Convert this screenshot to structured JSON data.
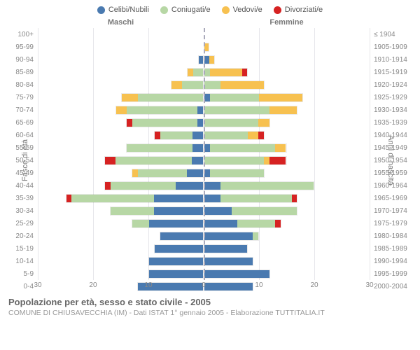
{
  "legend": [
    {
      "label": "Celibi/Nubili",
      "color": "#4a7ab0"
    },
    {
      "label": "Coniugati/e",
      "color": "#b7d7a5"
    },
    {
      "label": "Vedovi/e",
      "color": "#f7c150"
    },
    {
      "label": "Divorziati/e",
      "color": "#d62222"
    }
  ],
  "headers": {
    "males": "Maschi",
    "females": "Femmine"
  },
  "y_title_left": "Fasce di età",
  "y_title_right": "Anni di nascita",
  "x_max": 30,
  "x_ticks": [
    30,
    20,
    10,
    0,
    10,
    20,
    30
  ],
  "colors": {
    "single": "#4a7ab0",
    "married": "#b7d7a5",
    "widowed": "#f7c150",
    "divorced": "#d62222",
    "grid": "#e6e6ea",
    "centerline": "#aab"
  },
  "rows": [
    {
      "age": "100+",
      "year": "≤ 1904",
      "m": {
        "s": 0,
        "m": 0,
        "w": 0,
        "d": 0
      },
      "f": {
        "s": 0,
        "m": 0,
        "w": 0,
        "d": 0
      }
    },
    {
      "age": "95-99",
      "year": "1905-1909",
      "m": {
        "s": 0,
        "m": 0,
        "w": 0,
        "d": 0
      },
      "f": {
        "s": 0,
        "m": 0,
        "w": 1,
        "d": 0
      }
    },
    {
      "age": "90-94",
      "year": "1910-1914",
      "m": {
        "s": 1,
        "m": 0,
        "w": 0,
        "d": 0
      },
      "f": {
        "s": 1,
        "m": 0,
        "w": 1,
        "d": 0
      }
    },
    {
      "age": "85-89",
      "year": "1915-1919",
      "m": {
        "s": 0,
        "m": 2,
        "w": 1,
        "d": 0
      },
      "f": {
        "s": 0,
        "m": 1,
        "w": 6,
        "d": 1
      }
    },
    {
      "age": "80-84",
      "year": "1920-1924",
      "m": {
        "s": 0,
        "m": 4,
        "w": 2,
        "d": 0
      },
      "f": {
        "s": 0,
        "m": 3,
        "w": 8,
        "d": 0
      }
    },
    {
      "age": "75-79",
      "year": "1925-1929",
      "m": {
        "s": 0,
        "m": 12,
        "w": 3,
        "d": 0
      },
      "f": {
        "s": 1,
        "m": 9,
        "w": 8,
        "d": 0
      }
    },
    {
      "age": "70-74",
      "year": "1930-1934",
      "m": {
        "s": 1,
        "m": 13,
        "w": 2,
        "d": 0
      },
      "f": {
        "s": 0,
        "m": 12,
        "w": 5,
        "d": 0
      }
    },
    {
      "age": "65-69",
      "year": "1935-1939",
      "m": {
        "s": 1,
        "m": 12,
        "w": 0,
        "d": 1
      },
      "f": {
        "s": 0,
        "m": 10,
        "w": 2,
        "d": 0
      }
    },
    {
      "age": "60-64",
      "year": "1940-1944",
      "m": {
        "s": 2,
        "m": 6,
        "w": 0,
        "d": 1
      },
      "f": {
        "s": 0,
        "m": 8,
        "w": 2,
        "d": 1
      }
    },
    {
      "age": "55-59",
      "year": "1945-1949",
      "m": {
        "s": 2,
        "m": 12,
        "w": 0,
        "d": 0
      },
      "f": {
        "s": 1,
        "m": 12,
        "w": 2,
        "d": 0
      }
    },
    {
      "age": "50-54",
      "year": "1950-1954",
      "m": {
        "s": 2,
        "m": 14,
        "w": 0,
        "d": 2
      },
      "f": {
        "s": 0,
        "m": 11,
        "w": 1,
        "d": 3
      }
    },
    {
      "age": "45-49",
      "year": "1955-1959",
      "m": {
        "s": 3,
        "m": 9,
        "w": 1,
        "d": 0
      },
      "f": {
        "s": 1,
        "m": 10,
        "w": 0,
        "d": 0
      }
    },
    {
      "age": "40-44",
      "year": "1960-1964",
      "m": {
        "s": 5,
        "m": 12,
        "w": 0,
        "d": 1
      },
      "f": {
        "s": 3,
        "m": 17,
        "w": 0,
        "d": 0
      }
    },
    {
      "age": "35-39",
      "year": "1965-1969",
      "m": {
        "s": 9,
        "m": 15,
        "w": 0,
        "d": 1
      },
      "f": {
        "s": 3,
        "m": 13,
        "w": 0,
        "d": 1
      }
    },
    {
      "age": "30-34",
      "year": "1970-1974",
      "m": {
        "s": 9,
        "m": 8,
        "w": 0,
        "d": 0
      },
      "f": {
        "s": 5,
        "m": 12,
        "w": 0,
        "d": 0
      }
    },
    {
      "age": "25-29",
      "year": "1975-1979",
      "m": {
        "s": 10,
        "m": 3,
        "w": 0,
        "d": 0
      },
      "f": {
        "s": 6,
        "m": 7,
        "w": 0,
        "d": 1
      }
    },
    {
      "age": "20-24",
      "year": "1980-1984",
      "m": {
        "s": 8,
        "m": 0,
        "w": 0,
        "d": 0
      },
      "f": {
        "s": 9,
        "m": 1,
        "w": 0,
        "d": 0
      }
    },
    {
      "age": "15-19",
      "year": "1985-1989",
      "m": {
        "s": 9,
        "m": 0,
        "w": 0,
        "d": 0
      },
      "f": {
        "s": 8,
        "m": 0,
        "w": 0,
        "d": 0
      }
    },
    {
      "age": "10-14",
      "year": "1990-1994",
      "m": {
        "s": 10,
        "m": 0,
        "w": 0,
        "d": 0
      },
      "f": {
        "s": 9,
        "m": 0,
        "w": 0,
        "d": 0
      }
    },
    {
      "age": "5-9",
      "year": "1995-1999",
      "m": {
        "s": 10,
        "m": 0,
        "w": 0,
        "d": 0
      },
      "f": {
        "s": 12,
        "m": 0,
        "w": 0,
        "d": 0
      }
    },
    {
      "age": "0-4",
      "year": "2000-2004",
      "m": {
        "s": 12,
        "m": 0,
        "w": 0,
        "d": 0
      },
      "f": {
        "s": 9,
        "m": 0,
        "w": 0,
        "d": 0
      }
    }
  ],
  "footer": {
    "title": "Popolazione per età, sesso e stato civile - 2005",
    "subtitle": "COMUNE DI CHIUSAVECCHIA (IM) - Dati ISTAT 1° gennaio 2005 - Elaborazione TUTTITALIA.IT"
  }
}
